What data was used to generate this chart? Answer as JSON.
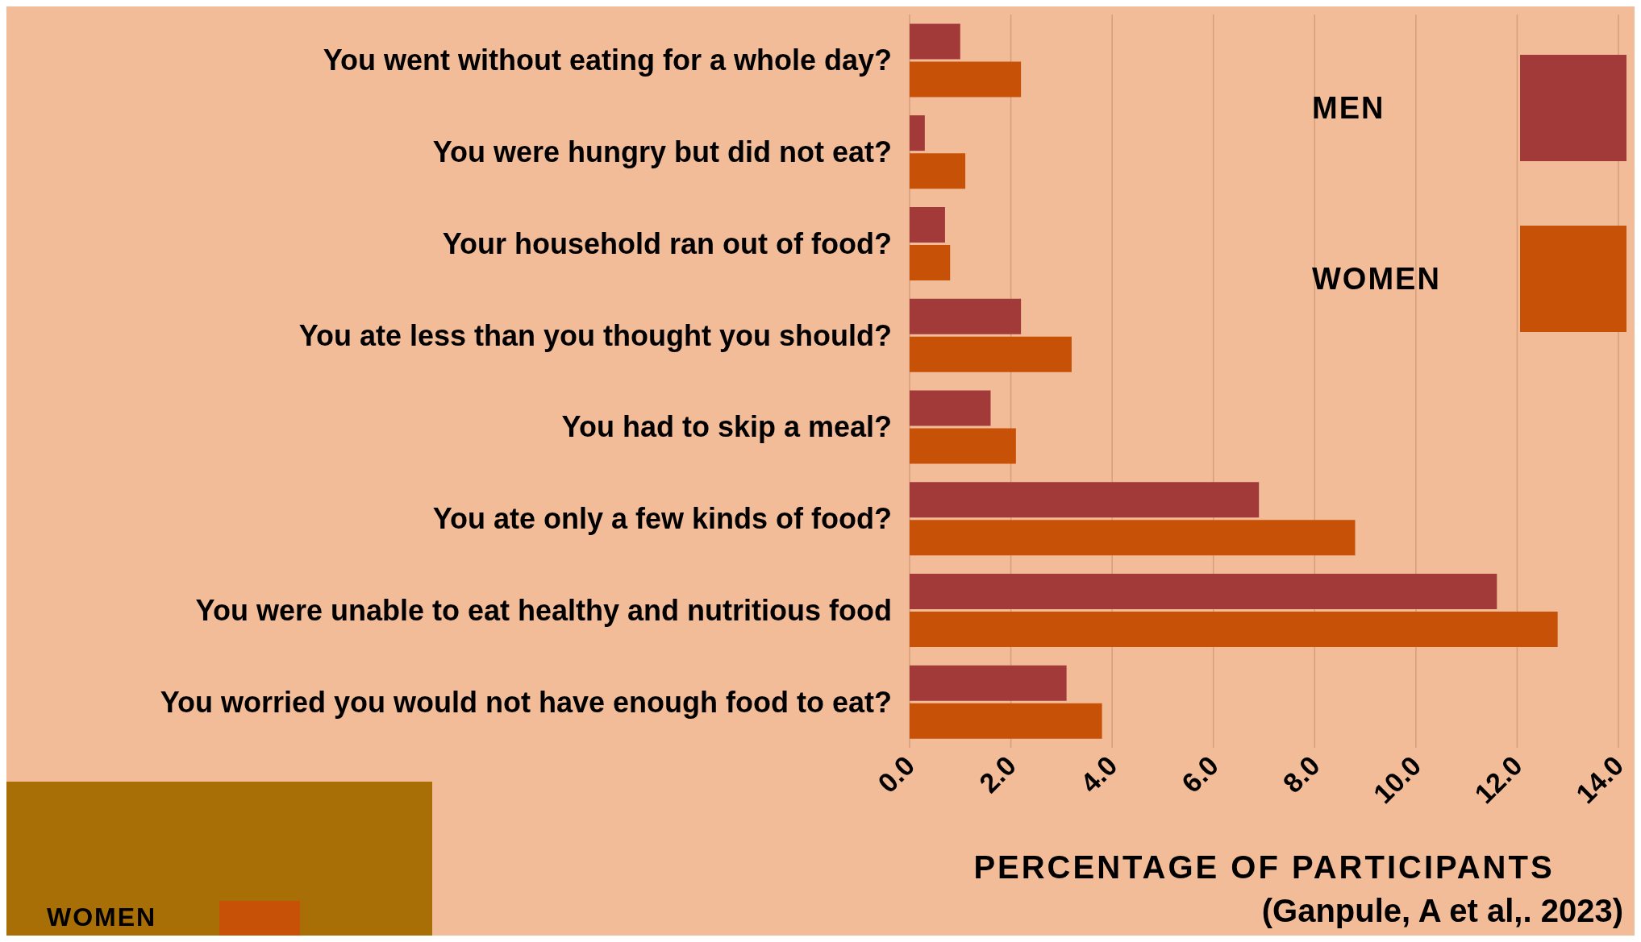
{
  "chart_data": {
    "type": "bar",
    "orientation": "horizontal",
    "xlabel": "PERCENTAGE OF PARTICIPANTS",
    "categories": [
      "You went without eating for a whole day?",
      "You were hungry but did not eat?",
      "Your household ran out of food?",
      "You ate less than you thought you should?",
      "You had to skip a meal?",
      "You ate only a few kinds of food?",
      "You were unable to eat healthy and nutritious food",
      "You worried you would not have enough food to eat?"
    ],
    "series": [
      {
        "name": "MEN",
        "color": "#a33a3a",
        "values": [
          1.0,
          0.3,
          0.7,
          2.2,
          1.6,
          6.9,
          11.6,
          3.1
        ]
      },
      {
        "name": "WOMEN",
        "color": "#c75106",
        "values": [
          2.2,
          1.1,
          0.8,
          3.2,
          2.1,
          8.8,
          12.8,
          3.8
        ]
      }
    ],
    "xlim": [
      0,
      14
    ],
    "xticks": [
      {
        "value": 0,
        "label": "0.0"
      },
      {
        "value": 2,
        "label": "2.0"
      },
      {
        "value": 4,
        "label": "4.0"
      },
      {
        "value": 6,
        "label": "6.0"
      },
      {
        "value": 8,
        "label": "8.0"
      },
      {
        "value": 10,
        "label": "10.0"
      },
      {
        "value": 12,
        "label": "12.0"
      },
      {
        "value": 14,
        "label": "14.0"
      }
    ],
    "grid": "x",
    "legend": "top right",
    "annotations": [
      "(Ganpule, A et al,. 2023)"
    ]
  }
}
